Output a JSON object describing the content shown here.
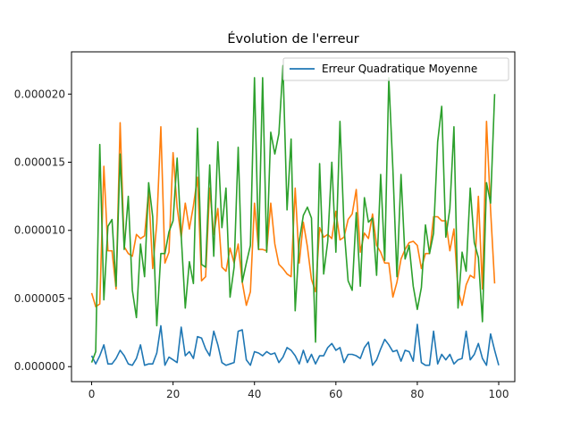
{
  "chart_data": {
    "type": "line",
    "title": "Évolution de l'erreur",
    "xlabel": "",
    "ylabel": "",
    "xlim": [
      -4.95,
      103.95
    ],
    "ylim": [
      -1.1e-06,
      2.31e-05
    ],
    "x_ticks": [
      0,
      20,
      40,
      60,
      80,
      100
    ],
    "x_tick_labels": [
      "0",
      "20",
      "40",
      "60",
      "80",
      "100"
    ],
    "y_ticks": [
      0,
      5e-06,
      1e-05,
      1.5e-05,
      2e-05
    ],
    "y_tick_labels": [
      "0.000000",
      "0.000005",
      "0.000010",
      "0.000015",
      "0.000020"
    ],
    "grid": false,
    "legend": {
      "placement": "top-right",
      "entries": [
        "Erreur Quadratique Moyenne"
      ]
    },
    "series": [
      {
        "name": "Erreur Quadratique Moyenne",
        "color": "#1f77b4",
        "values": [
          8e-07,
          2e-07,
          8e-07,
          1.6e-06,
          2e-07,
          2e-07,
          6e-07,
          1.2e-06,
          8e-07,
          2e-07,
          1e-07,
          6e-07,
          1.6e-06,
          1e-07,
          2e-07,
          2e-07,
          1e-06,
          3e-06,
          1e-07,
          7e-07,
          5e-07,
          3e-07,
          2.9e-06,
          8e-07,
          1.1e-06,
          6e-07,
          2.2e-06,
          2.1e-06,
          1.3e-06,
          8e-07,
          2.6e-06,
          1.6e-06,
          3e-07,
          1e-07,
          2e-07,
          3e-07,
          2.6e-06,
          2.7e-06,
          5e-07,
          1e-07,
          1.1e-06,
          1e-06,
          8e-07,
          1.1e-06,
          9e-07,
          1e-06,
          3e-07,
          7e-07,
          1.4e-06,
          1.2e-06,
          8e-07,
          2e-07,
          1.2e-06,
          3e-07,
          9e-07,
          2e-07,
          8e-07,
          8e-07,
          1.4e-06,
          1.7e-06,
          1.2e-06,
          1.4e-06,
          3e-07,
          9e-07,
          9e-07,
          8e-07,
          6e-07,
          1.4e-06,
          1.8e-06,
          1e-07,
          5e-07,
          1.3e-06,
          2e-06,
          1.6e-06,
          1.1e-06,
          1.2e-06,
          4e-07,
          1.2e-06,
          1.1e-06,
          4e-07,
          3.1e-06,
          3e-07,
          1e-07,
          1e-07,
          2.6e-06,
          2e-07,
          9e-07,
          5e-07,
          9e-07,
          2e-07,
          5e-07,
          6e-07,
          2.6e-06,
          5e-07,
          9e-07,
          1.7e-06,
          6e-07,
          1e-07,
          2.4e-06,
          1.2e-06,
          1e-07
        ]
      },
      {
        "name": "",
        "color": "#ff7f0e",
        "values": [
          5.4e-06,
          4.4e-06,
          4.6e-06,
          1.47e-05,
          8.5e-06,
          8.5e-06,
          5.7e-06,
          1.79e-05,
          8.8e-06,
          8.3e-06,
          8.1e-06,
          9.7e-06,
          9.4e-06,
          9.6e-06,
          1.29e-05,
          7.2e-06,
          1.05e-05,
          1.76e-05,
          7.6e-06,
          8.4e-06,
          1.57e-05,
          1.17e-05,
          9.5e-06,
          1.2e-05,
          1.01e-05,
          1.18e-05,
          1.39e-05,
          6.3e-06,
          6.6e-06,
          1.31e-05,
          9.7e-06,
          1.16e-05,
          7.3e-06,
          7e-06,
          8.7e-06,
          7.6e-06,
          9e-06,
          6.2e-06,
          4.5e-06,
          5.5e-06,
          1.2e-05,
          8.6e-06,
          8.6e-06,
          8.5e-06,
          1.2e-05,
          9e-06,
          7.5e-06,
          7.2e-06,
          6.8e-06,
          6.6e-06,
          1.31e-05,
          7.6e-06,
          1.06e-05,
          8.8e-06,
          6.4e-06,
          5.5e-06,
          1.02e-05,
          9.5e-06,
          9.7e-06,
          9.4e-06,
          1.14e-05,
          9.3e-06,
          9.5e-06,
          1.08e-05,
          1.12e-05,
          1.3e-05,
          8.4e-06,
          9.8e-06,
          9.4e-06,
          1.12e-05,
          8.9e-06,
          8.4e-06,
          7.6e-06,
          7.6e-06,
          5.1e-06,
          6.2e-06,
          7.9e-06,
          8.6e-06,
          9.1e-06,
          9.2e-06,
          8.9e-06,
          7.2e-06,
          8.3e-06,
          8.3e-06,
          1.1e-05,
          1.1e-05,
          1.07e-05,
          1.07e-05,
          8.5e-06,
          1.01e-05,
          5.6e-06,
          4.5e-06,
          6e-06,
          6.7e-06,
          6.5e-06,
          1.25e-05,
          5.7e-06,
          1.8e-05,
          1.15e-05,
          6.1e-06
        ]
      },
      {
        "name": "",
        "color": "#2ca02c",
        "values": [
          3e-07,
          1.1e-06,
          1.63e-05,
          4.9e-06,
          1.03e-05,
          1.08e-05,
          5.9e-06,
          1.56e-05,
          8.6e-06,
          1.25e-05,
          5.6e-06,
          3.6e-06,
          9e-06,
          6.6e-06,
          1.35e-05,
          1.1e-05,
          3e-06,
          8.3e-06,
          8.3e-06,
          9.9e-06,
          1.07e-05,
          1.53e-05,
          9.6e-06,
          4.3e-06,
          7.7e-06,
          6.1e-06,
          1.75e-05,
          7.5e-06,
          7.3e-06,
          1.48e-05,
          8.1e-06,
          1.65e-05,
          1.02e-05,
          1.31e-05,
          5.1e-06,
          7.3e-06,
          1.61e-05,
          6.2e-06,
          7.6e-06,
          8.9e-06,
          2.12e-05,
          8.6e-06,
          2.12e-05,
          8.4e-06,
          1.72e-05,
          1.56e-05,
          1.71e-05,
          2.21e-05,
          1.15e-05,
          1.67e-05,
          4.1e-06,
          9.2e-06,
          1.11e-05,
          1.17e-05,
          1.09e-05,
          1.8e-06,
          1.49e-05,
          6.8e-06,
          9.2e-06,
          1.5e-05,
          8.4e-06,
          1.8e-05,
          1.02e-05,
          6.3e-06,
          5.6e-06,
          1.13e-05,
          5.9e-06,
          1.24e-05,
          1.06e-05,
          1.09e-05,
          6.7e-06,
          1.41e-05,
          7.8e-06,
          2.12e-05,
          1.45e-05,
          6.6e-06,
          1.41e-05,
          7.9e-06,
          8.9e-06,
          5.9e-06,
          4.2e-06,
          5.8e-06,
          1.04e-05,
          8.3e-06,
          9.8e-06,
          1.65e-05,
          1.91e-05,
          9.5e-06,
          1.16e-05,
          1.76e-05,
          4.3e-06,
          8.4e-06,
          7e-06,
          1.31e-05,
          9.1e-06,
          8e-06,
          3.3e-06,
          1.35e-05,
          1.2e-05,
          2e-05
        ]
      }
    ]
  }
}
